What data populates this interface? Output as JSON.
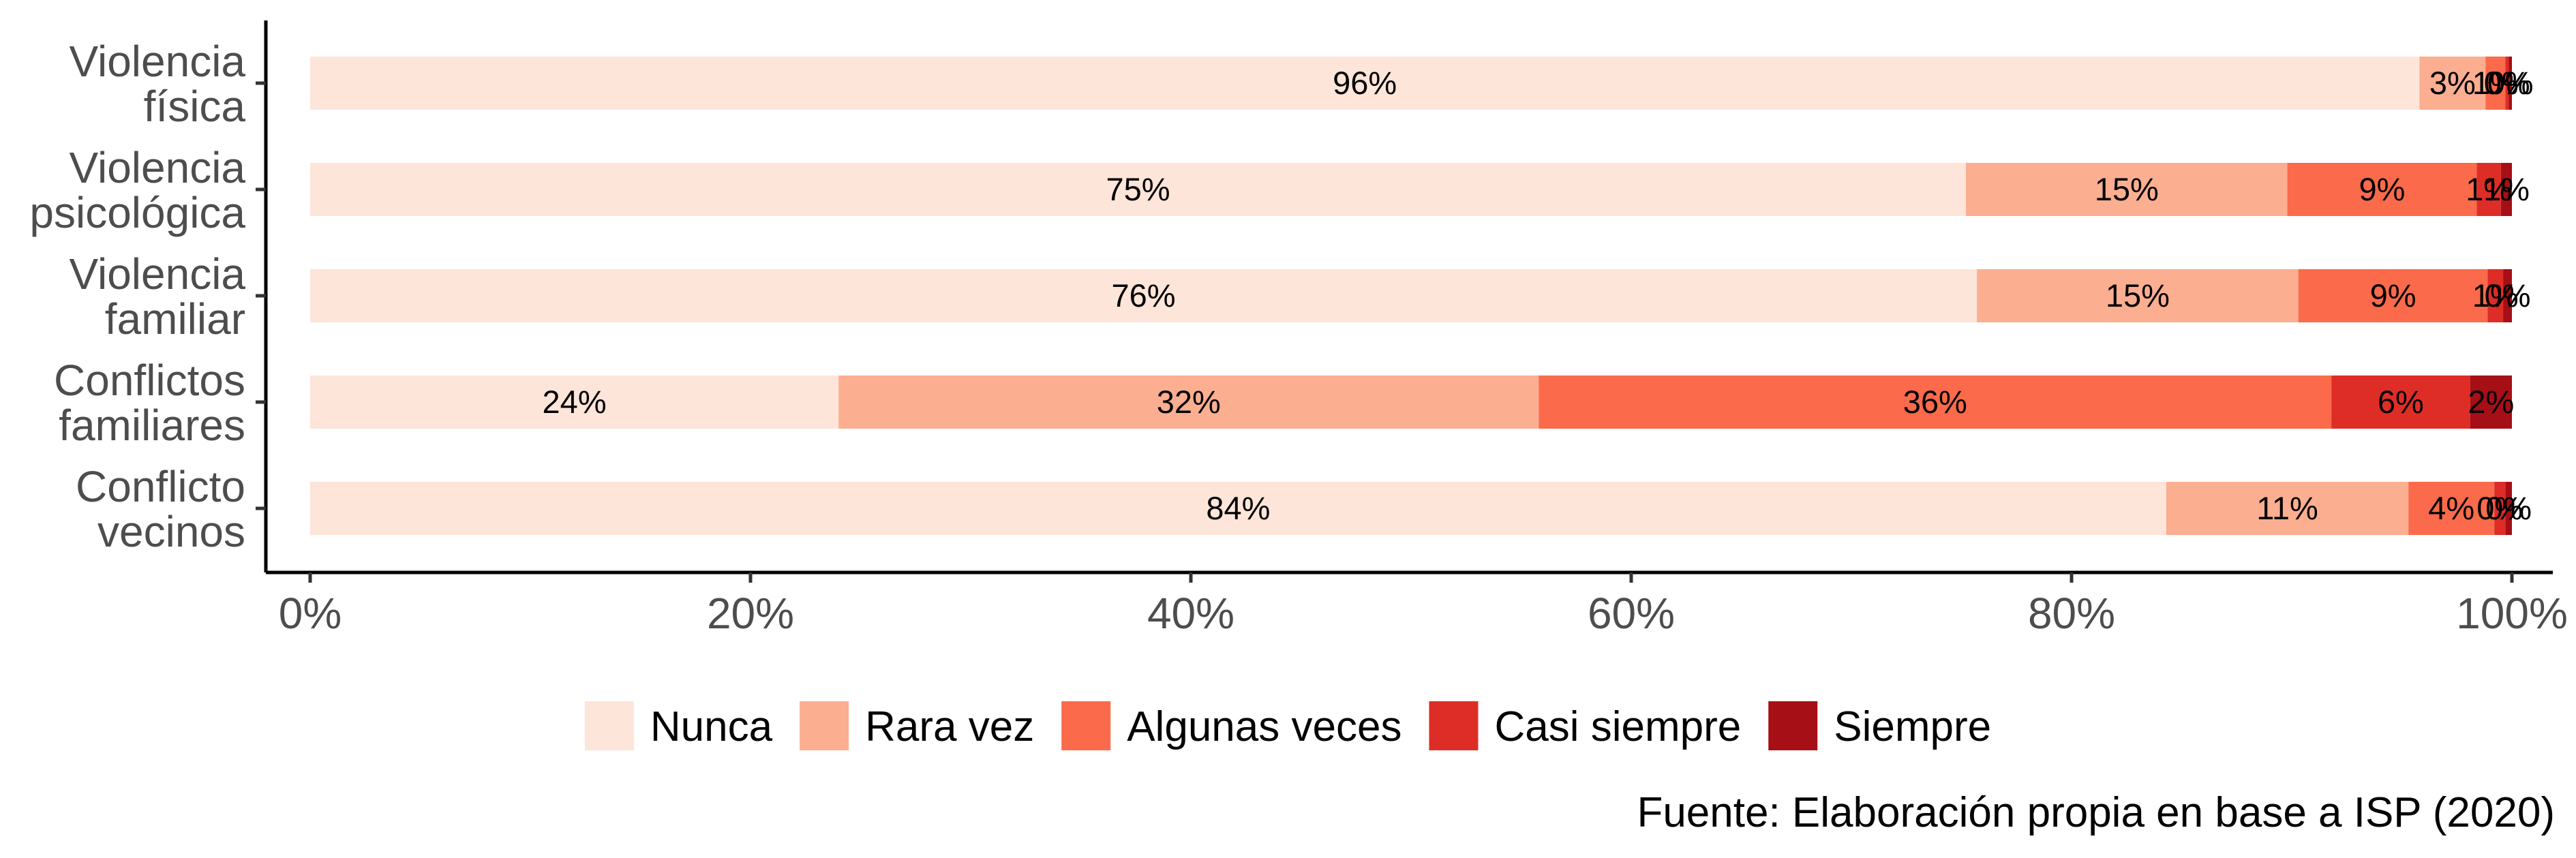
{
  "chart_data": {
    "type": "bar",
    "orientation": "horizontal",
    "stacked": true,
    "categories": [
      [
        "Violencia",
        "física"
      ],
      [
        "Violencia",
        "psicológica"
      ],
      [
        "Violencia",
        "familiar"
      ],
      [
        "Conflictos",
        "familiares"
      ],
      [
        "Conflicto",
        "vecinos"
      ]
    ],
    "series": [
      {
        "name": "Nunca",
        "color": "#fee5d9",
        "values": [
          96,
          75,
          76,
          24,
          84
        ]
      },
      {
        "name": "Rara vez",
        "color": "#fcae91",
        "values": [
          3,
          15,
          15,
          32,
          11
        ]
      },
      {
        "name": "Algunas veces",
        "color": "#fb6a4a",
        "values": [
          1,
          9,
          9,
          36,
          4
        ]
      },
      {
        "name": "Casi siempre",
        "color": "#de2d26",
        "values": [
          0,
          1,
          1,
          6,
          0
        ]
      },
      {
        "name": "Siempre",
        "color": "#a50f15",
        "values": [
          0,
          1,
          0,
          2,
          0
        ]
      }
    ],
    "bar_segment_ends": [
      [
        95.8,
        98.8,
        99.7,
        99.85,
        100
      ],
      [
        75.2,
        89.8,
        98.4,
        99.5,
        100
      ],
      [
        75.7,
        90.3,
        98.9,
        99.6,
        100
      ],
      [
        24.0,
        55.8,
        91.8,
        98.1,
        100
      ],
      [
        84.3,
        95.3,
        99.2,
        99.7,
        100
      ]
    ],
    "data_labels": [
      [
        "96%",
        "3%",
        "1%",
        "0%",
        "0%"
      ],
      [
        "75%",
        "15%",
        "9%",
        "1%",
        "1%"
      ],
      [
        "76%",
        "15%",
        "9%",
        "1%",
        "0%"
      ],
      [
        "24%",
        "32%",
        "36%",
        "6%",
        "2%"
      ],
      [
        "84%",
        "11%",
        "4%",
        "0%",
        "0%"
      ]
    ],
    "x_ticks": [
      0,
      20,
      40,
      60,
      80,
      100
    ],
    "x_tick_labels": [
      "0%",
      "20%",
      "40%",
      "60%",
      "80%",
      "100%"
    ],
    "xlim": [
      0,
      100
    ],
    "xlabel": "",
    "ylabel": "",
    "legend_position": "bottom",
    "grid": false
  },
  "caption": "Fuente: Elaboración propia en base a ISP (2020)"
}
